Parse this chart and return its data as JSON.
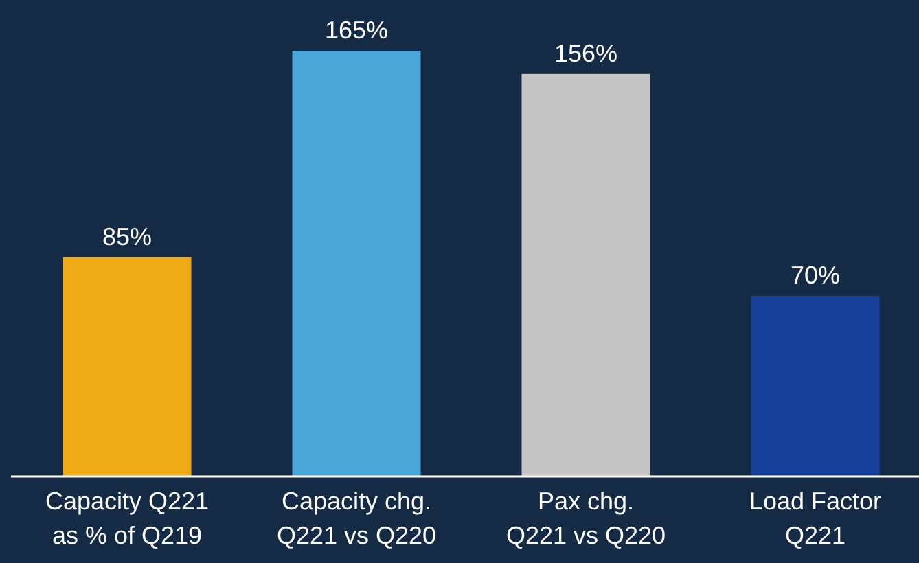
{
  "chart_data": {
    "type": "bar",
    "categories": [
      "Capacity Q221\nas % of Q219",
      "Capacity chg.\nQ221 vs Q220",
      "Pax chg.\nQ221 vs Q220",
      "Load Factor\nQ221"
    ],
    "values": [
      85,
      165,
      156,
      70
    ],
    "colors": [
      "#eeaa17",
      "#4aa6d6",
      "#c4c4c4",
      "#17409b"
    ],
    "value_labels": [
      "85%",
      "165%",
      "156%",
      "70%"
    ]
  }
}
